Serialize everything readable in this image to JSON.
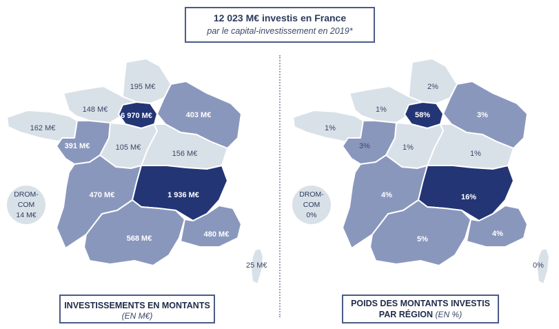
{
  "header": {
    "title": "12 023 M€ investis en France",
    "subtitle": "par le capital-investissement en 2019*"
  },
  "colors": {
    "light": "#d9e1e8",
    "medium": "#8a97bd",
    "dark": "#233574",
    "border": "#ffffff",
    "text_dark": "#3b4565"
  },
  "left_map": {
    "regions": {
      "hauts_de_france": "195 M€",
      "ile_de_france": "6 970 M€",
      "grand_est": "403 M€",
      "normandie": "148 M€",
      "bretagne": "162 M€",
      "pays_de_la_loire": "391 M€",
      "centre_val_de_loire": "105 M€",
      "bourgogne_franche_comte": "156 M€",
      "nouvelle_aquitaine": "470 M€",
      "auvergne_rhone_alpes": "1 936 M€",
      "occitanie": "568 M€",
      "paca": "480 M€",
      "corse": "25 M€"
    },
    "drom": {
      "line1": "DROM-",
      "line2": "COM",
      "line3": "14 M€"
    },
    "caption": {
      "title": "INVESTISSEMENTS EN MONTANTS",
      "unit": "(EN M€)"
    }
  },
  "right_map": {
    "regions": {
      "hauts_de_france": "2%",
      "ile_de_france": "58%",
      "grand_est": "3%",
      "normandie": "1%",
      "bretagne": "1%",
      "pays_de_la_loire": "3%",
      "centre_val_de_loire": "1%",
      "bourgogne_franche_comte": "1%",
      "nouvelle_aquitaine": "4%",
      "auvergne_rhone_alpes": "16%",
      "occitanie": "5%",
      "paca": "4%",
      "corse": "0%"
    },
    "drom": {
      "line1": "DROM-",
      "line2": "COM",
      "line3": "0%"
    },
    "caption": {
      "line1": "POIDS DES MONTANTS INVESTIS",
      "line2": "PAR RÉGION",
      "unit": "(EN %)"
    }
  }
}
